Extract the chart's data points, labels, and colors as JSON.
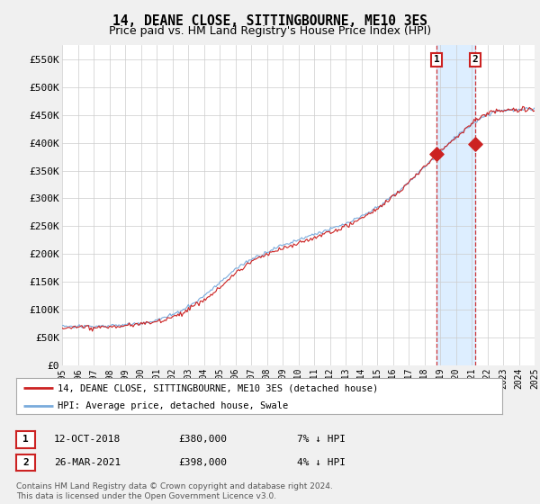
{
  "title": "14, DEANE CLOSE, SITTINGBOURNE, ME10 3ES",
  "subtitle": "Price paid vs. HM Land Registry's House Price Index (HPI)",
  "ylabel_ticks": [
    "£0",
    "£50K",
    "£100K",
    "£150K",
    "£200K",
    "£250K",
    "£300K",
    "£350K",
    "£400K",
    "£450K",
    "£500K",
    "£550K"
  ],
  "ylim": [
    0,
    575000
  ],
  "yticks": [
    0,
    50000,
    100000,
    150000,
    200000,
    250000,
    300000,
    350000,
    400000,
    450000,
    500000,
    550000
  ],
  "x_start_year": 1995,
  "x_end_year": 2025,
  "hpi_color": "#7aabdc",
  "price_color": "#cc2222",
  "bg_color": "#f0f0f0",
  "plot_bg_color": "#ffffff",
  "grid_color": "#cccccc",
  "sale1_year": 2018.78,
  "sale2_year": 2021.23,
  "marker1_price": 380000,
  "marker2_price": 398000,
  "legend_entry1": "14, DEANE CLOSE, SITTINGBOURNE, ME10 3ES (detached house)",
  "legend_entry2": "HPI: Average price, detached house, Swale",
  "table_row1": [
    "1",
    "12-OCT-2018",
    "£380,000",
    "7% ↓ HPI"
  ],
  "table_row2": [
    "2",
    "26-MAR-2021",
    "£398,000",
    "4% ↓ HPI"
  ],
  "footer": "Contains HM Land Registry data © Crown copyright and database right 2024.\nThis data is licensed under the Open Government Licence v3.0.",
  "title_fontsize": 10.5,
  "subtitle_fontsize": 9,
  "tick_fontsize": 8,
  "badge_color": "#cc2222",
  "span_color": "#ddeeff"
}
